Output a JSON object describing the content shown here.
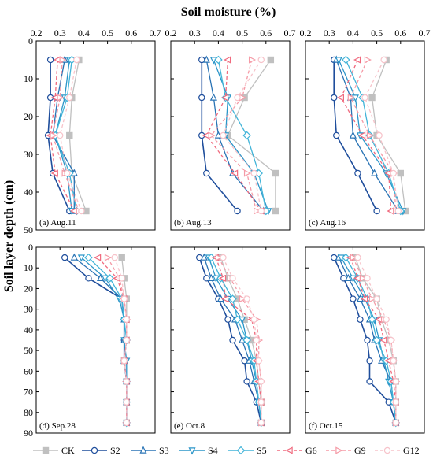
{
  "figure": {
    "x_title": "Soil moisture (%)",
    "y_title": "Soil layer depth (cm)"
  },
  "chart_data": {
    "type": "line",
    "orientation": "profile",
    "x_ticks": [
      "0.2",
      "0.3",
      "0.4",
      "0.5",
      "0.6",
      "0.7"
    ],
    "xlim": [
      0.2,
      0.7
    ],
    "y_ticks_top": [
      "0",
      "10",
      "20",
      "30",
      "40",
      "50"
    ],
    "y_ticks_bottom": [
      "0",
      "10",
      "20",
      "30",
      "40",
      "50",
      "60",
      "70",
      "80",
      "90"
    ],
    "ylim_top": [
      0,
      50
    ],
    "ylim_bottom": [
      0,
      90
    ],
    "legend_position": "bottom",
    "series_styles": [
      {
        "name": "CK",
        "color": "#c0c0c0",
        "marker": "square",
        "dash": false
      },
      {
        "name": "S2",
        "color": "#1f4e9c",
        "marker": "circle",
        "dash": false
      },
      {
        "name": "S3",
        "color": "#2a74b5",
        "marker": "triangle-up",
        "dash": false
      },
      {
        "name": "S4",
        "color": "#2c96c9",
        "marker": "triangle-down",
        "dash": false
      },
      {
        "name": "S5",
        "color": "#42b4d8",
        "marker": "diamond",
        "dash": false
      },
      {
        "name": "G6",
        "color": "#f06a7e",
        "marker": "triangle-left",
        "dash": true
      },
      {
        "name": "G9",
        "color": "#f59aa6",
        "marker": "triangle-right",
        "dash": true
      },
      {
        "name": "G12",
        "color": "#f7c3ca",
        "marker": "circle",
        "dash": true
      }
    ],
    "panels": [
      {
        "label": "(a) Aug.11",
        "depths": [
          5,
          15,
          25,
          35,
          45
        ],
        "series": {
          "CK": [
            0.38,
            0.35,
            0.34,
            0.35,
            0.41
          ],
          "S2": [
            0.26,
            0.26,
            0.25,
            0.27,
            0.34
          ],
          "S3": [
            0.32,
            0.29,
            0.27,
            0.36,
            0.36
          ],
          "S4": [
            0.34,
            0.32,
            0.28,
            0.33,
            0.35
          ],
          "S5": [
            0.35,
            0.33,
            0.28,
            0.34,
            0.37
          ],
          "G6": [
            0.29,
            0.28,
            0.26,
            0.28,
            0.36
          ],
          "G9": [
            0.31,
            0.3,
            0.27,
            0.32,
            0.38
          ],
          "G12": [
            0.37,
            0.34,
            0.3,
            0.33,
            0.39
          ]
        }
      },
      {
        "label": "(b) Aug.13",
        "depths": [
          5,
          15,
          25,
          35,
          45
        ],
        "series": {
          "CK": [
            0.62,
            0.51,
            0.44,
            0.64,
            0.64
          ],
          "S2": [
            0.33,
            0.33,
            0.33,
            0.35,
            0.48
          ],
          "S3": [
            0.35,
            0.38,
            0.4,
            0.46,
            0.59
          ],
          "S4": [
            0.38,
            0.44,
            0.43,
            0.55,
            0.61
          ],
          "S5": [
            0.4,
            0.43,
            0.52,
            0.57,
            0.6
          ],
          "G6": [
            0.44,
            0.43,
            0.35,
            0.47,
            0.58
          ],
          "G9": [
            0.54,
            0.5,
            0.37,
            0.52,
            0.56
          ],
          "G12": [
            0.58,
            0.48,
            0.42,
            0.55,
            0.58
          ]
        }
      },
      {
        "label": "(c) Aug.16",
        "depths": [
          5,
          15,
          25,
          35,
          45
        ],
        "series": {
          "CK": [
            0.54,
            0.48,
            0.5,
            0.6,
            0.62
          ],
          "S2": [
            0.32,
            0.32,
            0.33,
            0.42,
            0.5
          ],
          "S3": [
            0.33,
            0.39,
            0.4,
            0.49,
            0.59
          ],
          "S4": [
            0.34,
            0.41,
            0.43,
            0.54,
            0.61
          ],
          "S5": [
            0.37,
            0.44,
            0.47,
            0.55,
            0.6
          ],
          "G6": [
            0.42,
            0.35,
            0.44,
            0.55,
            0.56
          ],
          "G9": [
            0.46,
            0.39,
            0.47,
            0.57,
            0.58
          ],
          "G12": [
            0.53,
            0.45,
            0.51,
            0.57,
            0.59
          ]
        }
      },
      {
        "label": "(d) Sep.28",
        "depths": [
          5,
          15,
          25,
          35,
          45,
          55,
          65,
          75,
          85
        ],
        "series": {
          "CK": [
            0.56,
            0.57,
            0.58,
            0.58,
            0.58,
            0.57,
            0.58,
            0.58,
            0.58
          ],
          "S2": [
            0.32,
            0.42,
            0.56,
            0.57,
            0.57,
            0.57,
            0.58,
            0.58,
            0.58
          ],
          "S3": [
            0.36,
            0.47,
            0.56,
            0.57,
            0.57,
            0.57,
            0.58,
            0.58,
            0.58
          ],
          "S4": [
            0.39,
            0.49,
            0.55,
            0.57,
            0.57,
            0.58,
            0.58,
            0.58,
            0.58
          ],
          "S5": [
            0.42,
            0.51,
            0.56,
            0.57,
            0.58,
            0.57,
            0.58,
            0.58,
            0.58
          ],
          "G6": [
            0.46,
            0.54,
            0.57,
            0.58,
            0.58,
            0.57,
            0.58,
            0.58,
            0.58
          ],
          "G9": [
            0.5,
            0.55,
            0.57,
            0.58,
            0.58,
            0.57,
            0.58,
            0.58,
            0.58
          ],
          "G12": [
            0.53,
            0.56,
            0.57,
            0.58,
            0.58,
            0.57,
            0.58,
            0.58,
            0.58
          ]
        }
      },
      {
        "label": "(e) Oct.8",
        "depths": [
          5,
          15,
          25,
          35,
          45,
          55,
          65,
          75,
          85
        ],
        "series": {
          "CK": [
            0.41,
            0.44,
            0.48,
            0.51,
            0.54,
            0.56,
            0.57,
            0.58,
            0.58
          ],
          "S2": [
            0.32,
            0.35,
            0.4,
            0.44,
            0.46,
            0.51,
            0.52,
            0.56,
            0.58
          ],
          "S3": [
            0.34,
            0.37,
            0.41,
            0.47,
            0.5,
            0.53,
            0.55,
            0.57,
            0.58
          ],
          "S4": [
            0.36,
            0.39,
            0.44,
            0.5,
            0.52,
            0.54,
            0.56,
            0.57,
            0.58
          ],
          "S5": [
            0.37,
            0.41,
            0.46,
            0.48,
            0.52,
            0.55,
            0.56,
            0.57,
            0.58
          ],
          "G6": [
            0.39,
            0.42,
            0.43,
            0.54,
            0.56,
            0.56,
            0.57,
            0.58,
            0.58
          ],
          "G9": [
            0.4,
            0.45,
            0.5,
            0.56,
            0.57,
            0.57,
            0.58,
            0.58,
            0.58
          ],
          "G12": [
            0.42,
            0.46,
            0.52,
            0.55,
            0.56,
            0.57,
            0.58,
            0.58,
            0.58
          ]
        }
      },
      {
        "label": "(f) Oct.15",
        "depths": [
          5,
          15,
          25,
          35,
          45,
          55,
          65,
          75,
          85
        ],
        "series": {
          "CK": [
            0.41,
            0.44,
            0.5,
            0.52,
            0.55,
            0.57,
            0.58,
            0.58,
            0.58
          ],
          "S2": [
            0.32,
            0.36,
            0.4,
            0.43,
            0.46,
            0.47,
            0.47,
            0.55,
            0.58
          ],
          "S3": [
            0.34,
            0.38,
            0.43,
            0.47,
            0.49,
            0.52,
            0.56,
            0.57,
            0.58
          ],
          "S4": [
            0.35,
            0.4,
            0.45,
            0.49,
            0.51,
            0.53,
            0.55,
            0.57,
            0.58
          ],
          "S5": [
            0.37,
            0.42,
            0.46,
            0.48,
            0.5,
            0.54,
            0.56,
            0.57,
            0.58
          ],
          "G6": [
            0.39,
            0.42,
            0.45,
            0.51,
            0.53,
            0.55,
            0.57,
            0.58,
            0.58
          ],
          "G9": [
            0.4,
            0.44,
            0.48,
            0.53,
            0.56,
            0.57,
            0.58,
            0.58,
            0.58
          ],
          "G12": [
            0.42,
            0.46,
            0.5,
            0.54,
            0.56,
            0.57,
            0.58,
            0.58,
            0.58
          ]
        }
      }
    ]
  }
}
